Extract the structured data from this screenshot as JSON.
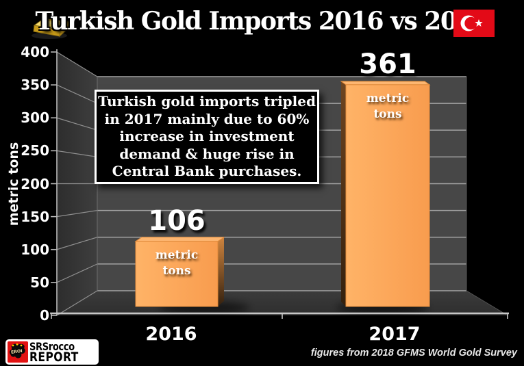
{
  "header": {
    "title": "Turkish Gold Imports 2016 vs 2017",
    "gold_bar_icon": "gold-bar",
    "flag_icon": "turkey-flag"
  },
  "annotation": {
    "lines": [
      "Turkish gold imports tripled",
      "in 2017 mainly due to 60%",
      "increase in investment",
      "demand & huge rise in",
      "Central Bank purchases."
    ]
  },
  "chart_data": {
    "type": "bar",
    "title": "Turkish Gold Imports 2016 vs 2017",
    "categories": [
      "2016",
      "2017"
    ],
    "values": [
      106,
      361
    ],
    "bar_value_labels": [
      "106",
      "361"
    ],
    "bar_unit_label": "metric tons",
    "ylabel": "metric tons",
    "ylim": [
      0,
      400
    ],
    "ytick_interval": 50,
    "yticks": [
      400,
      350,
      300,
      250,
      200,
      150,
      100,
      50,
      0
    ],
    "legend": "none",
    "style": "3d-perspective-black",
    "bar_color": "#FBA257",
    "wall_color": "#474747",
    "floor_color": "#363636",
    "gridline_color": "#a3a3a3",
    "background_color": "#000000"
  },
  "footer": {
    "logo": {
      "badge": "EROI",
      "line1": "SRSrocco",
      "line2": "REPORT"
    },
    "source": "figures from 2018 GFMS World Gold Survey"
  }
}
